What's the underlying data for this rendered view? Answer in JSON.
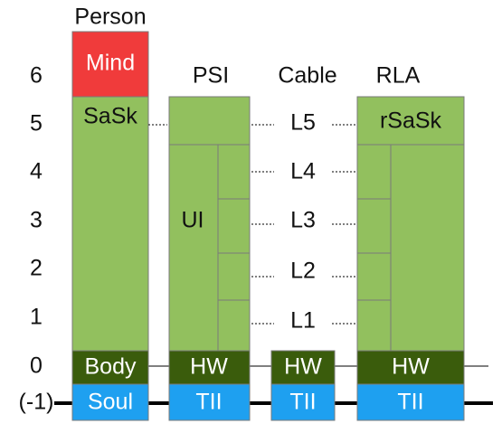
{
  "row_labels": [
    "6",
    "5",
    "4",
    "3",
    "2",
    "1",
    "0",
    "(-1)"
  ],
  "columns": [
    {
      "header": "Person",
      "top": "Mind",
      "main": "SaSk",
      "layer0": "Body",
      "layer_minus1": "Soul"
    },
    {
      "header": "PSI",
      "main": "UI",
      "layer0": "HW",
      "layer_minus1": "TII"
    },
    {
      "header": "Cable",
      "levels": [
        "L5",
        "L4",
        "L3",
        "L2",
        "L1"
      ],
      "layer0": "HW",
      "layer_minus1": "TII"
    },
    {
      "header": "RLA",
      "top": "rSaSk",
      "layer0": "HW",
      "layer_minus1": "TII"
    }
  ]
}
